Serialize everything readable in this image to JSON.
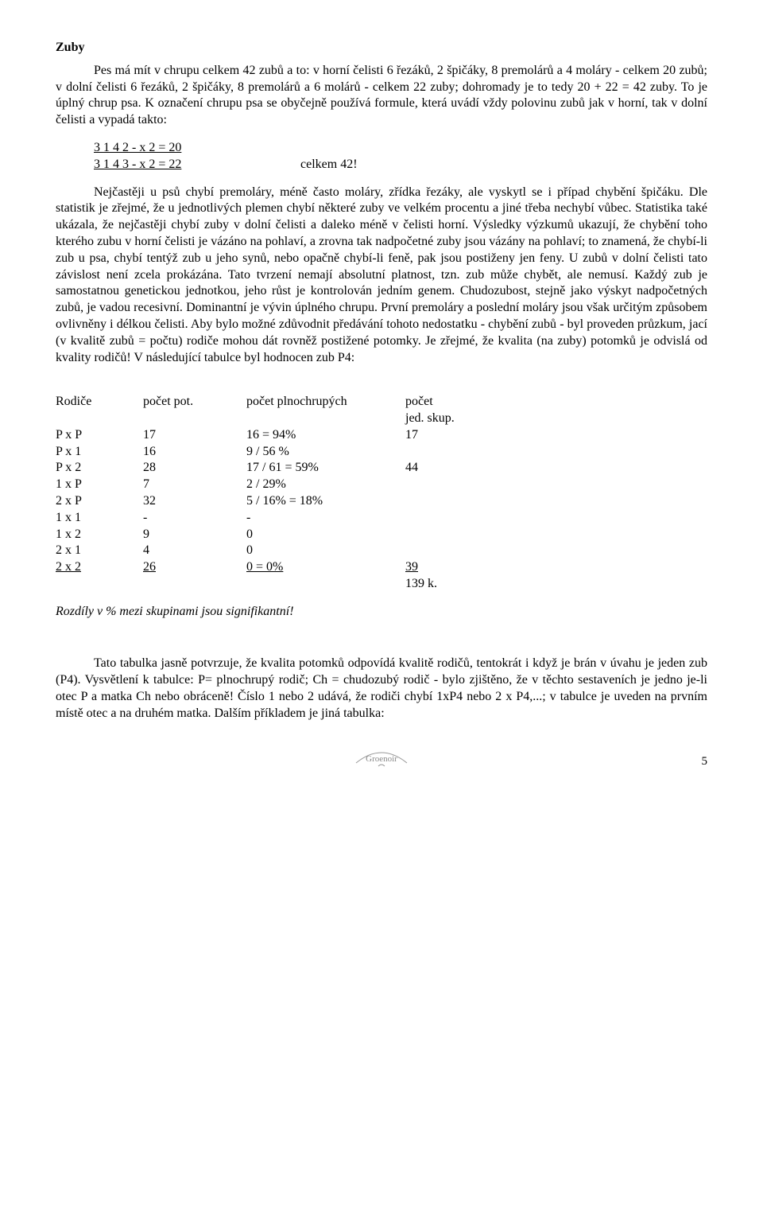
{
  "heading": "Zuby",
  "para1": "Pes má mít v chrupu celkem 42 zubů a to: v horní čelisti 6 řezáků, 2 špičáky, 8 premolárů a 4 moláry - celkem 20 zubů; v dolní čelisti 6 řezáků, 2 špičáky, 8 premolárů a 6 molárů - celkem 22 zuby; dohromady je to tedy 20 + 22 = 42 zuby. To je úplný chrup psa. K označení chrupu psa se obyčejně používá formule, která uvádí vždy polovinu zubů jak v horní, tak v dolní čelisti a vypadá takto:",
  "formula": {
    "line1_left": "3 1 4 2 - x 2 = 20",
    "line2_left": "3 1 4 3 - x 2 = 22",
    "line2_right": "celkem 42!"
  },
  "para2": "Nejčastěji u psů chybí premoláry, méně často moláry, zřídka řezáky, ale vyskytl se i případ chybění špičáku. Dle statistik je zřejmé, že u jednotlivých plemen chybí některé zuby ve velkém procentu a jiné třeba nechybí vůbec. Statistika také ukázala, že nejčastěji chybí zuby v dolní čelisti a daleko méně v čelisti horní. Výsledky výzkumů ukazují, že chybění toho kterého zubu v horní čelisti je vázáno na pohlaví, a zrovna tak nadpočetné zuby jsou vázány na pohlaví; to znamená, že chybí-li zub u psa, chybí tentýž zub u jeho synů, nebo opačně chybí-li feně, pak jsou postiženy jen feny. U zubů v dolní čelisti tato závislost není zcela prokázána. Tato tvrzení nemají absolutní platnost, tzn. zub může chybět, ale nemusí. Každý zub je samostatnou genetickou jednotkou, jeho růst je kontrolován jedním genem. Chudozubost, stejně jako výskyt nadpočetných zubů, je vadou recesivní. Dominantní je vývin úplného chrupu. První premoláry a poslední moláry jsou však určitým způsobem ovlivněny i délkou čelisti. Aby bylo možné zdůvodnit předávání tohoto nedostatku - chybění zubů - byl proveden průzkum, jací (v kvalitě zubů = počtu) rodiče mohou dát rovněž postižené potomky. Je zřejmé, že kvalita (na zuby) potomků je odvislá od kvality rodičů! V následující tabulce byl hodnocen zub P4:",
  "table": {
    "header1": {
      "c1": "Rodiče",
      "c2": "počet pot.",
      "c3": "počet plnochrupých",
      "c4": "počet"
    },
    "header2": {
      "c4": "jed. skup."
    },
    "rows": [
      {
        "c1": "P x P",
        "c2": "17",
        "c3": "16 = 94%",
        "c4": "17"
      },
      {
        "c1": "P x 1",
        "c2": "16",
        "c3": "9  / 56 %",
        "c4": ""
      },
      {
        "c1": "P x 2",
        "c2": "28",
        "c3": "17 / 61 = 59%",
        "c4": "44"
      },
      {
        "c1": "1 x P",
        "c2": "7",
        "c3": "2  / 29%",
        "c4": ""
      },
      {
        "c1": "2 x P",
        "c2": "32",
        "c3": "5 / 16% = 18%",
        "c4": ""
      },
      {
        "c1": "1 x 1",
        "c2": "-",
        "c3": "-",
        "c4": ""
      },
      {
        "c1": "1 x 2",
        "c2": "9",
        "c3": "0",
        "c4": ""
      },
      {
        "c1": "2 x 1",
        "c2": "4",
        "c3": "0",
        "c4": ""
      },
      {
        "c1": "2 x 2",
        "c2": "26",
        "c3": "0 = 0%",
        "c4": "39",
        "underline": true
      },
      {
        "c1": "",
        "c2": "",
        "c3": "",
        "c4": "139 k."
      }
    ]
  },
  "italic_line": "Rozdíly v % mezi skupinami jsou signifikantní!",
  "para3": "Tato tabulka jasně potvrzuje, že kvalita potomků odpovídá kvalitě rodičů, tentokrát i když je brán v úvahu je jeden zub (P4). Vysvětlení k tabulce: P= plnochrupý rodič; Ch = chudozubý rodič - bylo zjištěno, že v těchto sestaveních je jedno je-li otec P a matka Ch nebo obráceně! Číslo 1 nebo 2 udává, že rodiči chybí 1xP4 nebo 2 x P4,...; v tabulce je uveden na prvním místě otec a na druhém matka. Dalším příkladem je jiná tabulka:",
  "logo_text": "Groenoir",
  "page_number": "5"
}
